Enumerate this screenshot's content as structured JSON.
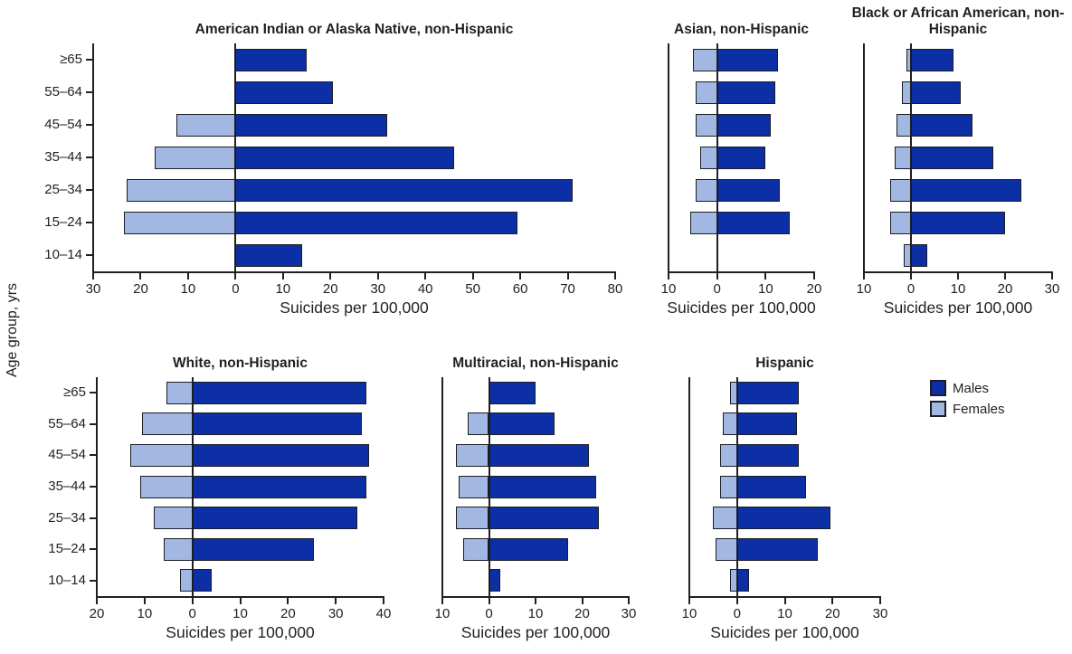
{
  "figure": {
    "y_axis_label": "Age group, yrs",
    "x_axis_label": "Suicides per 100,000",
    "age_groups": [
      "≥65",
      "55–64",
      "45–54",
      "35–44",
      "25–34",
      "15–24",
      "10–14"
    ],
    "legend": {
      "males_label": "Males",
      "females_label": "Females"
    },
    "colors": {
      "males": "#0D2FA6",
      "females": "#A3B7E3",
      "outline": "#1A1D24",
      "ink": "#231F20"
    }
  },
  "chart_data": [
    {
      "type": "bar",
      "orientation": "horizontal-diverging",
      "title": "American Indian or Alaska Native, non-Hispanic",
      "xlabel": "Suicides per 100,000",
      "categories": [
        "≥65",
        "55–64",
        "45–54",
        "35–44",
        "25–34",
        "15–24",
        "10–14"
      ],
      "xlim": [
        -30,
        80
      ],
      "x_ticks": [
        -30,
        -20,
        -10,
        0,
        10,
        20,
        30,
        40,
        50,
        60,
        70,
        80
      ],
      "show_age_labels": true,
      "series": [
        {
          "name": "Males",
          "direction": "right",
          "values": [
            15,
            20.5,
            32,
            46,
            71,
            59.5,
            14
          ]
        },
        {
          "name": "Females",
          "direction": "left",
          "values": [
            0,
            0,
            12.5,
            17,
            23,
            23.5,
            0
          ]
        }
      ]
    },
    {
      "type": "bar",
      "orientation": "horizontal-diverging",
      "title": "Asian, non-Hispanic",
      "xlabel": "Suicides per 100,000",
      "categories": [
        "≥65",
        "55–64",
        "45–54",
        "35–44",
        "25–34",
        "15–24",
        "10–14"
      ],
      "xlim": [
        -10,
        20
      ],
      "x_ticks": [
        -10,
        0,
        10,
        20
      ],
      "show_age_labels": false,
      "series": [
        {
          "name": "Males",
          "direction": "right",
          "values": [
            12.5,
            12,
            11,
            10,
            13,
            15,
            0
          ]
        },
        {
          "name": "Females",
          "direction": "left",
          "values": [
            5,
            4.5,
            4.5,
            3.5,
            4.5,
            5.5,
            0
          ]
        }
      ]
    },
    {
      "type": "bar",
      "orientation": "horizontal-diverging",
      "title": "Black or African American, non-Hispanic",
      "xlabel": "Suicides per 100,000",
      "categories": [
        "≥65",
        "55–64",
        "45–54",
        "35–44",
        "25–34",
        "15–24",
        "10–14"
      ],
      "xlim": [
        -10,
        30
      ],
      "x_ticks": [
        -10,
        0,
        10,
        20,
        30
      ],
      "show_age_labels": false,
      "series": [
        {
          "name": "Males",
          "direction": "right",
          "values": [
            9,
            10.5,
            13,
            17.5,
            23.5,
            20,
            3.5
          ]
        },
        {
          "name": "Females",
          "direction": "left",
          "values": [
            1,
            2,
            3,
            3.5,
            4.5,
            4.5,
            1.5
          ]
        }
      ]
    },
    {
      "type": "bar",
      "orientation": "horizontal-diverging",
      "title": "White, non-Hispanic",
      "xlabel": "Suicides per 100,000",
      "categories": [
        "≥65",
        "55–64",
        "45–54",
        "35–44",
        "25–34",
        "15–24",
        "10–14"
      ],
      "xlim": [
        -20,
        40
      ],
      "x_ticks": [
        -20,
        -10,
        0,
        10,
        20,
        30,
        40
      ],
      "show_age_labels": true,
      "series": [
        {
          "name": "Males",
          "direction": "right",
          "values": [
            36.5,
            35.5,
            37,
            36.5,
            34.5,
            25.5,
            4
          ]
        },
        {
          "name": "Females",
          "direction": "left",
          "values": [
            5.5,
            10.5,
            13,
            11,
            8,
            6,
            2.5
          ]
        }
      ]
    },
    {
      "type": "bar",
      "orientation": "horizontal-diverging",
      "title": "Multiracial, non-Hispanic",
      "xlabel": "Suicides per 100,000",
      "categories": [
        "≥65",
        "55–64",
        "45–54",
        "35–44",
        "25–34",
        "15–24",
        "10–14"
      ],
      "xlim": [
        -10,
        30
      ],
      "x_ticks": [
        -10,
        0,
        10,
        20,
        30
      ],
      "show_age_labels": false,
      "series": [
        {
          "name": "Males",
          "direction": "right",
          "values": [
            10,
            14,
            21.5,
            23,
            23.5,
            17,
            2.5
          ]
        },
        {
          "name": "Females",
          "direction": "left",
          "values": [
            0,
            4.5,
            7,
            6.5,
            7,
            5.5,
            0
          ]
        }
      ]
    },
    {
      "type": "bar",
      "orientation": "horizontal-diverging",
      "title": "Hispanic",
      "xlabel": "Suicides per 100,000",
      "categories": [
        "≥65",
        "55–64",
        "45–54",
        "35–44",
        "25–34",
        "15–24",
        "10–14"
      ],
      "xlim": [
        -10,
        30
      ],
      "x_ticks": [
        -10,
        0,
        10,
        20,
        30
      ],
      "show_age_labels": false,
      "series": [
        {
          "name": "Males",
          "direction": "right",
          "values": [
            13,
            12.5,
            13,
            14.5,
            19.5,
            17,
            2.5
          ]
        },
        {
          "name": "Females",
          "direction": "left",
          "values": [
            1.5,
            3,
            3.5,
            3.5,
            5,
            4.5,
            1.5
          ]
        }
      ]
    }
  ]
}
